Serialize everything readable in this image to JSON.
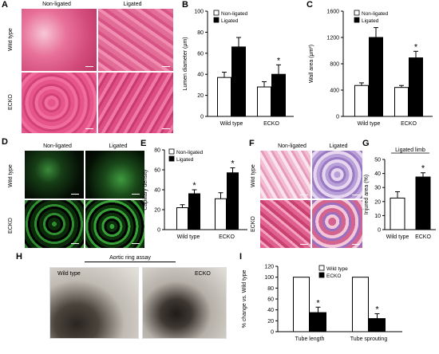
{
  "panels": {
    "A": {
      "label": "A",
      "col_headers": [
        "Non-ligated",
        "Ligated"
      ],
      "row_headers": [
        "Wild type",
        "ECKO"
      ]
    },
    "D": {
      "label": "D",
      "col_headers": [
        "Non-ligated",
        "Ligated"
      ],
      "row_headers": [
        "Wild type",
        "ECKO"
      ]
    },
    "F": {
      "label": "F",
      "col_headers": [
        "Non-ligated",
        "Ligated"
      ],
      "row_headers": [
        "Wild type",
        "ECKO"
      ]
    },
    "H": {
      "label": "H",
      "title": "Aortic ring assay",
      "left_label": "Wild type",
      "right_label": "ECKO"
    }
  },
  "chart_data": [
    {
      "id": "B",
      "label": "B",
      "type": "bar",
      "categories": [
        "Wild type",
        "ECKO"
      ],
      "series": [
        {
          "name": "Non-ligated",
          "values": [
            37,
            28
          ],
          "errors": [
            5,
            5
          ],
          "color": "#ffffff"
        },
        {
          "name": "Ligated",
          "values": [
            66,
            40
          ],
          "errors": [
            9,
            9
          ],
          "color": "#000000"
        }
      ],
      "ylabel": "Lumen diameter (μm)",
      "ylim": [
        0,
        100
      ],
      "yticks": [
        "0",
        "20",
        "40",
        "60",
        "80",
        "100"
      ],
      "significance": "*",
      "legend": "top-left"
    },
    {
      "id": "C",
      "label": "C",
      "type": "bar",
      "categories": [
        "Wild type",
        "ECKO"
      ],
      "series": [
        {
          "name": "Non-ligated",
          "values": [
            470,
            440
          ],
          "errors": [
            40,
            30
          ],
          "color": "#ffffff"
        },
        {
          "name": "Ligated",
          "values": [
            1200,
            890
          ],
          "errors": [
            150,
            100
          ],
          "color": "#000000"
        }
      ],
      "ylabel": "Wall area (μm²)",
      "ylim": [
        0,
        1600
      ],
      "yticks": [
        "0",
        "400",
        "800",
        "1200",
        "1600"
      ],
      "significance": "*",
      "legend": "top-right"
    },
    {
      "id": "E",
      "label": "E",
      "type": "bar",
      "categories": [
        "Wild type",
        "ECKO"
      ],
      "series": [
        {
          "name": "Non-ligated",
          "values": [
            22,
            31
          ],
          "errors": [
            3,
            6
          ],
          "color": "#ffffff"
        },
        {
          "name": "Ligated",
          "values": [
            36,
            57
          ],
          "errors": [
            4,
            5
          ],
          "color": "#000000"
        }
      ],
      "ylabel": "Capillary density",
      "ylim": [
        0,
        80
      ],
      "yticks": [
        "0",
        "20",
        "40",
        "60",
        "80"
      ],
      "significance": "*",
      "legend": "top-left"
    },
    {
      "id": "G",
      "label": "G",
      "type": "bar",
      "title": "Ligated limb",
      "categories": [
        "Wild type",
        "ECKO"
      ],
      "series": [
        {
          "name": "",
          "values": [
            22.5,
            37.5
          ],
          "errors": [
            4.5,
            3
          ],
          "colors": [
            "#ffffff",
            "#000000"
          ]
        }
      ],
      "ylabel": "Injured area (%)",
      "ylim": [
        0,
        50
      ],
      "yticks": [
        "0",
        "10",
        "20",
        "30",
        "40",
        "50"
      ],
      "significance": "*"
    },
    {
      "id": "I",
      "label": "I",
      "type": "bar",
      "categories": [
        "Tube length",
        "Tube sprouting"
      ],
      "series": [
        {
          "name": "Wild type",
          "values": [
            100,
            100
          ],
          "errors": [
            0,
            0
          ],
          "color": "#ffffff"
        },
        {
          "name": "ECKO",
          "values": [
            35,
            24
          ],
          "errors": [
            10,
            9
          ],
          "color": "#000000"
        }
      ],
      "ylabel": "% change vs. Wild type",
      "ylim": [
        0,
        120
      ],
      "yticks": [
        "0",
        "20",
        "40",
        "60",
        "80",
        "100",
        "120"
      ],
      "significance": "*",
      "legend": "top-center"
    }
  ]
}
